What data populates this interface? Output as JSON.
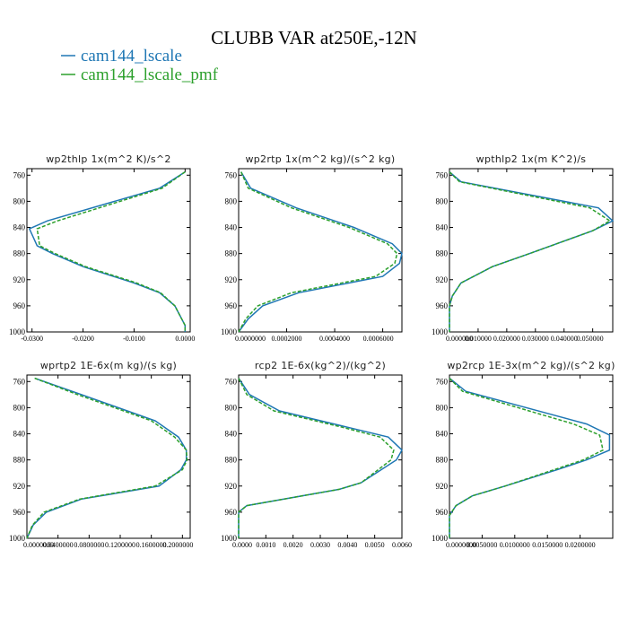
{
  "title": "CLUBB VAR at250E,-12N",
  "colors": {
    "series1": "#1f77b4",
    "series2": "#2ca02c"
  },
  "legend": [
    {
      "label": "cam144_lscale",
      "color": "#1f77b4",
      "dashed": false
    },
    {
      "label": "cam144_lscale_pmf",
      "color": "#2ca02c",
      "dashed": true
    }
  ],
  "chart_data": [
    {
      "type": "line",
      "title": "wp2thlp  1x(m^2 K)/s^2",
      "xlim": [
        -0.031,
        0.001
      ],
      "ylim": [
        750,
        1000
      ],
      "y_inverted": true,
      "yticks": [
        "760",
        "800",
        "840",
        "880",
        "920",
        "960",
        "1000"
      ],
      "xticks": [
        "-0.0300",
        "-0.0200",
        "-0.0100",
        "0.0000"
      ],
      "xtick_values": [
        -0.03,
        -0.02,
        -0.01,
        0.0
      ],
      "y": [
        755,
        780,
        830,
        842,
        868,
        880,
        900,
        925,
        940,
        960,
        990,
        1000
      ],
      "series": [
        {
          "name": "cam144_lscale",
          "values": [
            0.0,
            -0.005,
            -0.027,
            -0.0305,
            -0.029,
            -0.026,
            -0.02,
            -0.01,
            -0.005,
            -0.002,
            0.0,
            0.0
          ]
        },
        {
          "name": "cam144_lscale_pmf",
          "values": [
            0.0,
            -0.0045,
            -0.025,
            -0.029,
            -0.0285,
            -0.0255,
            -0.0195,
            -0.0095,
            -0.0048,
            -0.002,
            0.0,
            0.0
          ]
        }
      ]
    },
    {
      "type": "line",
      "title": "wp2rtp  1x(m^2 kg)/(s^2 kg)",
      "xlim": [
        0.0,
        0.00068
      ],
      "ylim": [
        750,
        1000
      ],
      "y_inverted": true,
      "yticks": [
        "760",
        "800",
        "840",
        "880",
        "920",
        "960",
        "1000"
      ],
      "xticks": [
        "0.0000000",
        "0.0002000",
        "0.0004000",
        "0.0006000"
      ],
      "xtick_values": [
        0.0,
        0.0002,
        0.0004,
        0.0006
      ],
      "tick_labels_run_together": true,
      "y": [
        755,
        780,
        810,
        840,
        865,
        880,
        895,
        915,
        940,
        960,
        980,
        1000
      ],
      "series": [
        {
          "name": "cam144_lscale",
          "values": [
            1e-05,
            5e-05,
            0.00024,
            0.00048,
            0.00064,
            0.00068,
            0.00067,
            0.0006,
            0.00025,
            0.0001,
            4e-05,
            0.0
          ]
        },
        {
          "name": "cam144_lscale_pmf",
          "values": [
            1e-05,
            4e-05,
            0.00022,
            0.00046,
            0.00062,
            0.00066,
            0.00065,
            0.00057,
            0.00022,
            8e-05,
            3e-05,
            0.0
          ]
        }
      ]
    },
    {
      "type": "line",
      "title": "wpthlp2  1x(m K^2)/s",
      "xlim": [
        0.0,
        0.057
      ],
      "ylim": [
        750,
        1000
      ],
      "y_inverted": true,
      "yticks": [
        "760",
        "800",
        "840",
        "880",
        "920",
        "960",
        "1000"
      ],
      "xticks": [
        "0.000000",
        "0.010000",
        "0.020000",
        "0.030000",
        "0.040000",
        "0.050000"
      ],
      "xtick_values": [
        0.0,
        0.01,
        0.02,
        0.03,
        0.04,
        0.05
      ],
      "tick_labels_run_together": true,
      "y": [
        755,
        770,
        810,
        830,
        845,
        880,
        900,
        925,
        945,
        960,
        1000
      ],
      "series": [
        {
          "name": "cam144_lscale",
          "values": [
            0.0,
            0.004,
            0.052,
            0.057,
            0.05,
            0.028,
            0.015,
            0.004,
            0.001,
            0.0,
            0.0
          ]
        },
        {
          "name": "cam144_lscale_pmf",
          "values": [
            0.0,
            0.0035,
            0.049,
            0.056,
            0.05,
            0.028,
            0.015,
            0.004,
            0.001,
            0.0,
            0.0
          ]
        }
      ]
    },
    {
      "type": "line",
      "title": "wprtp2  1E-6x(m kg)/(s kg)",
      "xlim": [
        0.0,
        0.21
      ],
      "ylim": [
        750,
        1000
      ],
      "y_inverted": true,
      "yticks": [
        "760",
        "800",
        "840",
        "880",
        "920",
        "960",
        "1000"
      ],
      "xticks": [
        "0.0000000",
        "0.0400000",
        "0.0800000",
        "0.1200000",
        "0.1600000",
        "0.2000000"
      ],
      "xtick_values": [
        0.0,
        0.04,
        0.08,
        0.12,
        0.16,
        0.2
      ],
      "tick_labels_run_together": true,
      "y": [
        755,
        780,
        820,
        845,
        865,
        880,
        895,
        920,
        940,
        960,
        980,
        1000
      ],
      "series": [
        {
          "name": "cam144_lscale",
          "values": [
            0.01,
            0.07,
            0.165,
            0.195,
            0.205,
            0.205,
            0.198,
            0.17,
            0.07,
            0.025,
            0.008,
            0.0
          ]
        },
        {
          "name": "cam144_lscale_pmf",
          "values": [
            0.01,
            0.065,
            0.16,
            0.19,
            0.205,
            0.206,
            0.2,
            0.165,
            0.068,
            0.022,
            0.007,
            0.0
          ]
        }
      ]
    },
    {
      "type": "line",
      "title": "rcp2  1E-6x(kg^2)/(kg^2)",
      "xlim": [
        0.0,
        0.006
      ],
      "ylim": [
        750,
        1000
      ],
      "y_inverted": true,
      "yticks": [
        "760",
        "800",
        "840",
        "880",
        "920",
        "960",
        "1000"
      ],
      "xticks": [
        "0.0000",
        "0.0010",
        "0.0020",
        "0.0030",
        "0.0040",
        "0.0050",
        "0.0060"
      ],
      "xtick_values": [
        0.0,
        0.001,
        0.002,
        0.003,
        0.004,
        0.005,
        0.006
      ],
      "y": [
        755,
        780,
        805,
        830,
        845,
        865,
        880,
        915,
        925,
        950,
        960,
        1000
      ],
      "series": [
        {
          "name": "cam144_lscale",
          "values": [
            0.0,
            0.0004,
            0.0015,
            0.004,
            0.0055,
            0.006,
            0.0058,
            0.0045,
            0.0037,
            0.0003,
            0.0,
            0.0
          ]
        },
        {
          "name": "cam144_lscale_pmf",
          "values": [
            0.0,
            0.0003,
            0.0013,
            0.0038,
            0.0052,
            0.0057,
            0.0056,
            0.0045,
            0.0037,
            0.0003,
            0.0,
            0.0
          ]
        }
      ]
    },
    {
      "type": "line",
      "title": "wp2rcp  1E-3x(m^2 kg)/(s^2 kg)",
      "xlim": [
        0.0,
        0.025
      ],
      "ylim": [
        750,
        1000
      ],
      "y_inverted": true,
      "yticks": [
        "760",
        "800",
        "840",
        "880",
        "920",
        "960",
        "1000"
      ],
      "xticks": [
        "0.0000000",
        "0.0050000",
        "0.0100000",
        "0.0150000",
        "0.0200000"
      ],
      "xtick_values": [
        0.0,
        0.005,
        0.01,
        0.015,
        0.02
      ],
      "tick_labels_run_together": true,
      "y": [
        755,
        775,
        825,
        842,
        865,
        880,
        895,
        920,
        935,
        950,
        965,
        1000
      ],
      "series": [
        {
          "name": "cam144_lscale",
          "values": [
            0.0,
            0.0025,
            0.021,
            0.0245,
            0.0245,
            0.021,
            0.0165,
            0.0085,
            0.0035,
            0.001,
            0.0,
            0.0
          ]
        },
        {
          "name": "cam144_lscale_pmf",
          "values": [
            0.0,
            0.002,
            0.019,
            0.023,
            0.0235,
            0.0205,
            0.016,
            0.0085,
            0.0035,
            0.001,
            0.0,
            0.0
          ]
        }
      ]
    }
  ]
}
